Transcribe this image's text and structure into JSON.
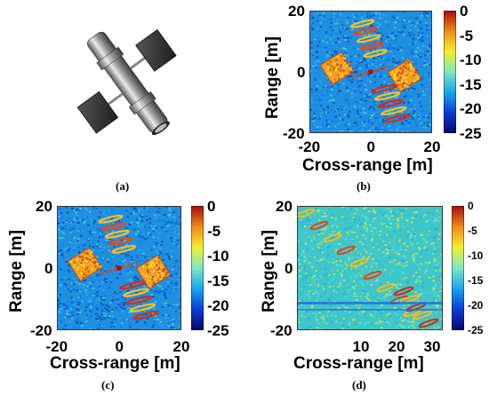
{
  "captions": {
    "a": "(a)",
    "b": "(b)",
    "c": "(c)",
    "d": "(d)"
  },
  "colorscale": [
    "#08086a",
    "#0a3cd8",
    "#18a6ee",
    "#7fe6c0",
    "#f2ee30",
    "#f08a18",
    "#a80a0a"
  ],
  "chart_data": [
    {
      "panel": "b",
      "type": "heatmap",
      "xlabel": "Cross-range [m]",
      "ylabel": "Range [m]",
      "xlim": [
        -20,
        20
      ],
      "ylim": [
        -20,
        20
      ],
      "x_ticks": [
        "-20",
        "0",
        "20"
      ],
      "y_ticks": [
        "20",
        "0",
        "-20"
      ],
      "colorbar": {
        "ticks": [
          "0",
          "-5",
          "-10",
          "-15",
          "-20",
          "-25"
        ],
        "range": [
          -25,
          0
        ]
      }
    },
    {
      "panel": "c",
      "type": "heatmap",
      "xlabel": "Cross-range [m]",
      "ylabel": "Range [m]",
      "xlim": [
        -20,
        20
      ],
      "ylim": [
        -20,
        20
      ],
      "x_ticks": [
        "-20",
        "0",
        "20"
      ],
      "y_ticks": [
        "20",
        "0",
        "-20"
      ],
      "colorbar": {
        "ticks": [
          "0",
          "-5",
          "-10",
          "-15",
          "-20",
          "-25"
        ],
        "range": [
          -25,
          0
        ]
      }
    },
    {
      "panel": "d",
      "type": "heatmap",
      "xlabel": "Cross-range [m]",
      "ylabel": "Range [m]",
      "xlim": [
        -8,
        33
      ],
      "ylim": [
        -20,
        20
      ],
      "x_ticks": [
        "10",
        "20",
        "30"
      ],
      "y_ticks": [
        "20",
        "0",
        "-20"
      ],
      "colorbar": {
        "ticks": [
          "0",
          "-5",
          "-10",
          "-15",
          "-20",
          "-25"
        ],
        "range": [
          -25,
          0
        ]
      }
    }
  ]
}
